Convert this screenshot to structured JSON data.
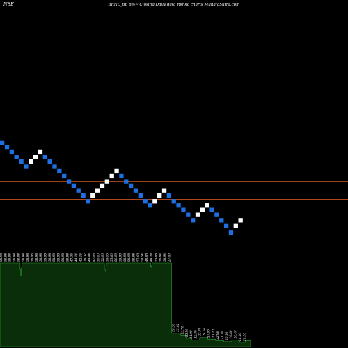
{
  "header": {
    "exchange": "NSE",
    "description": "BRNL_BE 8%~  Closing Daily data  Renko  charts MunafaSutra.com"
  },
  "chart_data": {
    "type": "renko",
    "box_size_percent": 8,
    "colors": {
      "up_brick": "#ffffff",
      "down_brick": "#1e6fe0",
      "reference_line": "#b5471c",
      "volume_fill": "#0a2e0a",
      "volume_stroke": "#2ea82e",
      "background": "#000000"
    },
    "reference_levels": [
      40,
      29
    ],
    "bricks": [
      {
        "dir": "down",
        "level": 80
      },
      {
        "dir": "down",
        "level": 74
      },
      {
        "dir": "down",
        "level": 68
      },
      {
        "dir": "down",
        "level": 62
      },
      {
        "dir": "down",
        "level": 57
      },
      {
        "dir": "down",
        "level": 52
      },
      {
        "dir": "up",
        "level": 57
      },
      {
        "dir": "up",
        "level": 62
      },
      {
        "dir": "up",
        "level": 68
      },
      {
        "dir": "down",
        "level": 62
      },
      {
        "dir": "down",
        "level": 57
      },
      {
        "dir": "down",
        "level": 52
      },
      {
        "dir": "down",
        "level": 48
      },
      {
        "dir": "down",
        "level": 44
      },
      {
        "dir": "down",
        "level": 40
      },
      {
        "dir": "down",
        "level": 37
      },
      {
        "dir": "down",
        "level": 34
      },
      {
        "dir": "down",
        "level": 31
      },
      {
        "dir": "down",
        "level": 28
      },
      {
        "dir": "up",
        "level": 31
      },
      {
        "dir": "up",
        "level": 34
      },
      {
        "dir": "up",
        "level": 37
      },
      {
        "dir": "up",
        "level": 40
      },
      {
        "dir": "up",
        "level": 44
      },
      {
        "dir": "up",
        "level": 48
      },
      {
        "dir": "down",
        "level": 44
      },
      {
        "dir": "down",
        "level": 40
      },
      {
        "dir": "down",
        "level": 37
      },
      {
        "dir": "down",
        "level": 34
      },
      {
        "dir": "down",
        "level": 31
      },
      {
        "dir": "down",
        "level": 28
      },
      {
        "dir": "down",
        "level": 26
      },
      {
        "dir": "up",
        "level": 28
      },
      {
        "dir": "up",
        "level": 31
      },
      {
        "dir": "up",
        "level": 34
      },
      {
        "dir": "down",
        "level": 31
      },
      {
        "dir": "down",
        "level": 28
      },
      {
        "dir": "down",
        "level": 26
      },
      {
        "dir": "down",
        "level": 24
      },
      {
        "dir": "down",
        "level": 22
      },
      {
        "dir": "down",
        "level": 20
      },
      {
        "dir": "up",
        "level": 22
      },
      {
        "dir": "up",
        "level": 24
      },
      {
        "dir": "up",
        "level": 26
      },
      {
        "dir": "down",
        "level": 24
      },
      {
        "dir": "down",
        "level": 22
      },
      {
        "dir": "down",
        "level": 20
      },
      {
        "dir": "down",
        "level": 18
      },
      {
        "dir": "down",
        "level": 16
      },
      {
        "dir": "up",
        "level": 18
      },
      {
        "dir": "up",
        "level": 20
      }
    ],
    "price_labels": [
      "58.98",
      "58.98",
      "58.98",
      "58.98",
      "58.98",
      "58.98",
      "58.98",
      "58.98",
      "58.98",
      "58.98",
      "58.98",
      "58.98",
      "58.98",
      "58.98",
      "58.98",
      "58.98",
      "47.36",
      "44.14",
      "42.16",
      "38.37",
      "44.44",
      "47.06",
      "50.00",
      "52.00",
      "54.05",
      "55.60",
      "56.00",
      "58.98",
      "58.98",
      "58.98",
      "58.98",
      "57.60",
      "54.54",
      "48.80",
      "49.28",
      "55.88",
      "56.84",
      "58.98",
      "27.40",
      "26.36",
      "25.02",
      "23.70",
      "22.56",
      "21.90",
      "22.80",
      "23.70",
      "24.66",
      "25.00",
      "23.20",
      "22.90",
      "21.70",
      "20.56",
      "19.80",
      "20.40",
      "21.16",
      "21.50"
    ],
    "volume": [
      1,
      1,
      1,
      1,
      1,
      1,
      1,
      1,
      1,
      1,
      1,
      1,
      1,
      1,
      1,
      1,
      1,
      1,
      1,
      1,
      1,
      1,
      1,
      1,
      1,
      1,
      1,
      1,
      1,
      1,
      0.92,
      0.85,
      0.95,
      1,
      1,
      1,
      1,
      1,
      1,
      1,
      1,
      1,
      1,
      1,
      1,
      1,
      1,
      1,
      1,
      1,
      1,
      1,
      1,
      1,
      1,
      1,
      1,
      1,
      1,
      1,
      1,
      1,
      1,
      1,
      1,
      1,
      1,
      1,
      1,
      1,
      1,
      1,
      1,
      1,
      1,
      1,
      1,
      1,
      1,
      1,
      1,
      1,
      1,
      1,
      1,
      1,
      1,
      1,
      1,
      1,
      1,
      1,
      1,
      1,
      1,
      1,
      1,
      1,
      1,
      1,
      1,
      1,
      1,
      1,
      1,
      1,
      1,
      1,
      1,
      1,
      1,
      1,
      1,
      1,
      1,
      1,
      1,
      1,
      1,
      1,
      1,
      1,
      1,
      1,
      1,
      1,
      1,
      1,
      1,
      1,
      1,
      1,
      1,
      1,
      1,
      1,
      1,
      1,
      1,
      1,
      1,
      1,
      1,
      1,
      1,
      1,
      1,
      1,
      1,
      1,
      1,
      1,
      1,
      1,
      1,
      1,
      0.93,
      0.9,
      0.97,
      1,
      1,
      1,
      1,
      1,
      1,
      1,
      1,
      1,
      1,
      1,
      1,
      1,
      1,
      1,
      1,
      1,
      1,
      1,
      1,
      1,
      1,
      1,
      1,
      1,
      1,
      1,
      1,
      1,
      1,
      1,
      1,
      1,
      1,
      1,
      1,
      1,
      1,
      1,
      1,
      1,
      1,
      1,
      1,
      1,
      1,
      1,
      1,
      1,
      1,
      1,
      1,
      1,
      1,
      1,
      1,
      1,
      1,
      1,
      1,
      1,
      1,
      1,
      1,
      1,
      1,
      0.95,
      0.97,
      1,
      1,
      1,
      1,
      1,
      1,
      1,
      1,
      1,
      1,
      1,
      1,
      1,
      1,
      1,
      1,
      1,
      1,
      1,
      1,
      1,
      1,
      1,
      1,
      1,
      1,
      1,
      1,
      1,
      0.16,
      0.16,
      0.16,
      0.16,
      0.16,
      0.16,
      0.16,
      0.16,
      0.16,
      0.16,
      0.16,
      0.16,
      0.16,
      0.16,
      0.13,
      0.13,
      0.13,
      0.13,
      0.13,
      0.13,
      0.13,
      0.13,
      0.1,
      0.1,
      0.1,
      0.1,
      0.1,
      0.1,
      0.1,
      0.1,
      0.08,
      0.08,
      0.08,
      0.08,
      0.08,
      0.08,
      0.08,
      0.08,
      0.08,
      0.08,
      0.08,
      0.08,
      0.11,
      0.11,
      0.11,
      0.11,
      0.11,
      0.11,
      0.11,
      0.11,
      0.11,
      0.11,
      0.11,
      0.11,
      0.09,
      0.09,
      0.09,
      0.09,
      0.09,
      0.09,
      0.09,
      0.09,
      0.09,
      0.09,
      0.09,
      0.09,
      0.07,
      0.07,
      0.07,
      0.07,
      0.07,
      0.07,
      0.07,
      0.07,
      0.07,
      0.07,
      0.07,
      0.07,
      0.06,
      0.06,
      0.06,
      0.06,
      0.06,
      0.06,
      0.06,
      0.06,
      0.06,
      0.06,
      0.06,
      0.06,
      0.08,
      0.08,
      0.08,
      0.08,
      0.08,
      0.08,
      0.08,
      0.08,
      0.08,
      0.08,
      0.08,
      0.08,
      0.05,
      0.05,
      0.05,
      0.05,
      0.05,
      0.05,
      0.05,
      0.05,
      0.07,
      0.07,
      0.07,
      0.07,
      0.07,
      0.07,
      0.07,
      0.07
    ]
  }
}
